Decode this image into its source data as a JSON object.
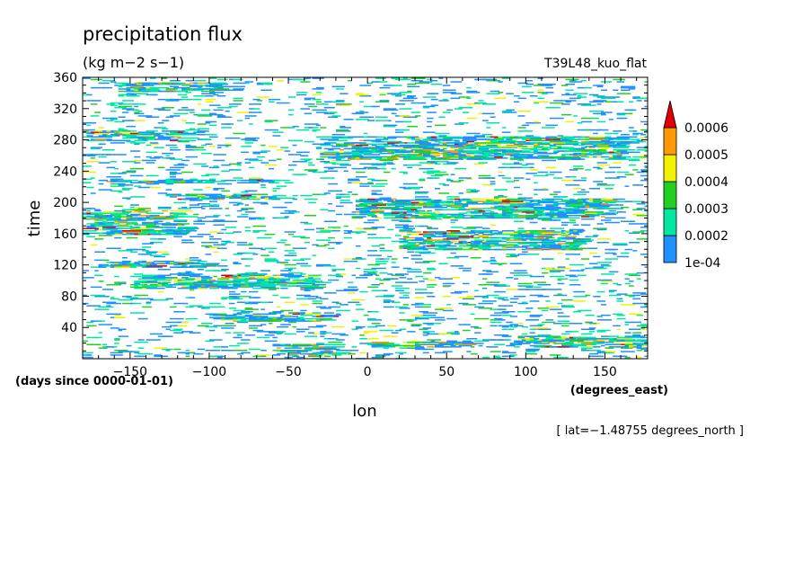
{
  "chart_data": {
    "type": "heatmap",
    "title": "precipitation flux",
    "units": "(kg m−2 s−1)",
    "dataset": "T39L48_kuo_flat",
    "xlabel": "lon",
    "x_units": "(degrees_east)",
    "ylabel": "time",
    "y_units": "(days since 0000-01-01)",
    "footnote": "[ lat=−1.48755 degrees_north ]",
    "xlim": [
      -180,
      177
    ],
    "ylim": [
      0,
      360
    ],
    "x_ticks": [
      {
        "value": -150,
        "label": "−150"
      },
      {
        "value": -100,
        "label": "−100"
      },
      {
        "value": -50,
        "label": "−50"
      },
      {
        "value": 0,
        "label": "0"
      },
      {
        "value": 50,
        "label": "50"
      },
      {
        "value": 100,
        "label": "100"
      },
      {
        "value": 150,
        "label": "150"
      }
    ],
    "y_ticks": [
      {
        "value": 40,
        "label": "40"
      },
      {
        "value": 80,
        "label": "80"
      },
      {
        "value": 120,
        "label": "120"
      },
      {
        "value": 160,
        "label": "160"
      },
      {
        "value": 200,
        "label": "200"
      },
      {
        "value": 240,
        "label": "240"
      },
      {
        "value": 280,
        "label": "280"
      },
      {
        "value": 320,
        "label": "320"
      },
      {
        "value": 360,
        "label": "360"
      }
    ],
    "colorbar": {
      "levels": [
        {
          "label": "1e-04",
          "color": "#1e90ff"
        },
        {
          "label": "0.0002",
          "color": "#00e8a0"
        },
        {
          "label": "0.0003",
          "color": "#22d022"
        },
        {
          "label": "0.0004",
          "color": "#f2f200"
        },
        {
          "label": "0.0005",
          "color": "#ff9a00"
        },
        {
          "label": "0.0006",
          "color": "#e00000"
        }
      ]
    },
    "bands": [
      {
        "lon": [
          -180,
          -120
        ],
        "time": [
          280,
          292
        ]
      },
      {
        "lon": [
          -160,
          -95
        ],
        "time": [
          343,
          354
        ]
      },
      {
        "lon": [
          -170,
          -60
        ],
        "time": [
          225,
          230
        ]
      },
      {
        "lon": [
          -130,
          -60
        ],
        "time": [
          205,
          212
        ]
      },
      {
        "lon": [
          -10,
          150
        ],
        "time": [
          180,
          205
        ]
      },
      {
        "lon": [
          20,
          130
        ],
        "time": [
          140,
          165
        ]
      },
      {
        "lon": [
          -30,
          160
        ],
        "time": [
          255,
          285
        ]
      },
      {
        "lon": [
          -170,
          -110
        ],
        "time": [
          118,
          124
        ]
      },
      {
        "lon": [
          -150,
          -40
        ],
        "time": [
          90,
          110
        ]
      },
      {
        "lon": [
          -100,
          -30
        ],
        "time": [
          48,
          58
        ]
      },
      {
        "lon": [
          -60,
          -20
        ],
        "time": [
          5,
          20
        ]
      },
      {
        "lon": [
          0,
          60
        ],
        "time": [
          15,
          22
        ]
      },
      {
        "lon": [
          90,
          175
        ],
        "time": [
          15,
          30
        ]
      },
      {
        "lon": [
          -180,
          -120
        ],
        "time": [
          160,
          190
        ]
      },
      {
        "lon": [
          60,
          120
        ],
        "time": [
          275,
          282
        ]
      }
    ]
  }
}
